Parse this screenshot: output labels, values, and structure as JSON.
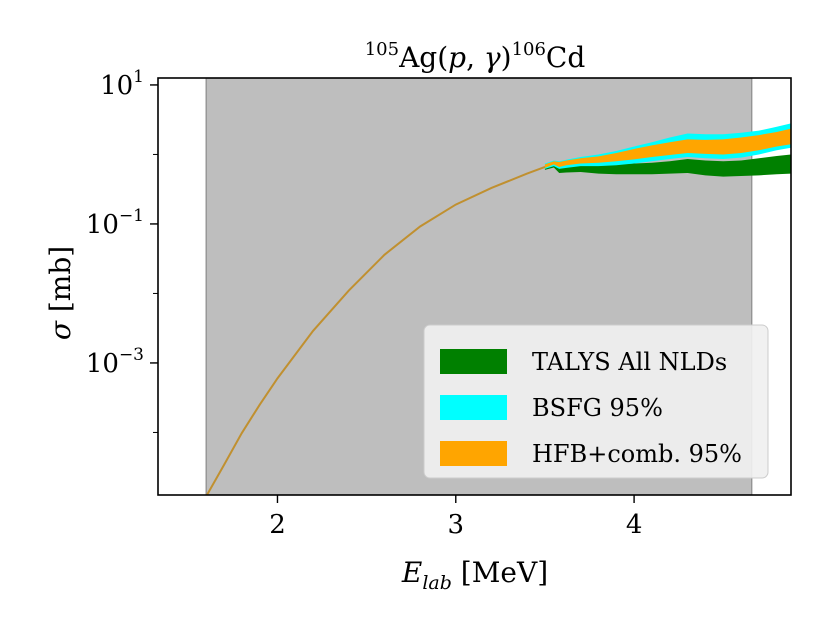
{
  "chart_data": {
    "type": "area",
    "title": {
      "pre_sup": "105",
      "pre_base": "Ag(",
      "p": "p",
      "comma": ", ",
      "gamma": "γ",
      "close": ")",
      "post_sup": "106",
      "post_base": "Cd"
    },
    "xlabel": {
      "var": "E",
      "sub": "lab",
      "unit": " [MeV]"
    },
    "ylabel": {
      "var": "σ",
      "unit": " [mb]"
    },
    "x_range": [
      1.33,
      4.88
    ],
    "y_range_log10": [
      -4.9,
      1.1
    ],
    "y_scale": "log",
    "x_ticks": [
      {
        "value": 2,
        "label": "2"
      },
      {
        "value": 3,
        "label": "3"
      },
      {
        "value": 4,
        "label": "4"
      }
    ],
    "y_ticks": [
      {
        "exp": 1,
        "base": "10",
        "sup": "1"
      },
      {
        "exp": -1,
        "base": "10",
        "sup": "−1"
      },
      {
        "exp": -3,
        "base": "10",
        "sup": "−3"
      }
    ],
    "shaded_region": {
      "x_start": 1.6,
      "x_end": 4.66,
      "color": "#bebebe"
    },
    "legend": {
      "position": "lower-right"
    },
    "series": [
      {
        "name": "TALYS All NLDs",
        "color": "#008000",
        "x": [
          3.5,
          3.55,
          3.58,
          3.62,
          3.7,
          3.8,
          3.9,
          4.0,
          4.1,
          4.2,
          4.3,
          4.4,
          4.5,
          4.6,
          4.7,
          4.8,
          4.88
        ],
        "lower": [
          0.6,
          0.65,
          0.54,
          0.55,
          0.56,
          0.53,
          0.52,
          0.52,
          0.52,
          0.53,
          0.54,
          0.5,
          0.48,
          0.49,
          0.5,
          0.52,
          0.53
        ],
        "upper": [
          0.7,
          0.78,
          0.72,
          0.72,
          0.76,
          0.72,
          0.72,
          0.74,
          0.76,
          0.8,
          0.86,
          0.82,
          0.8,
          0.82,
          0.88,
          0.95,
          1.0
        ]
      },
      {
        "name": "BSFG 95%",
        "color": "#00ffff",
        "x": [
          3.5,
          3.55,
          3.58,
          3.62,
          3.7,
          3.8,
          3.9,
          4.0,
          4.1,
          4.2,
          4.3,
          4.4,
          4.5,
          4.6,
          4.7,
          4.8,
          4.88
        ],
        "lower": [
          0.62,
          0.68,
          0.62,
          0.64,
          0.68,
          0.68,
          0.7,
          0.74,
          0.8,
          0.86,
          0.92,
          0.88,
          0.86,
          0.9,
          1.0,
          1.15,
          1.25
        ],
        "upper": [
          0.74,
          0.82,
          0.8,
          0.84,
          0.92,
          1.0,
          1.12,
          1.3,
          1.5,
          1.75,
          2.0,
          1.95,
          1.95,
          2.05,
          2.2,
          2.5,
          2.8
        ]
      },
      {
        "name": "HFB+comb. 95%",
        "color": "#ffa500",
        "x": [
          3.5,
          3.55,
          3.58,
          3.62,
          3.7,
          3.8,
          3.9,
          4.0,
          4.1,
          4.2,
          4.3,
          4.4,
          4.5,
          4.6,
          4.7,
          4.8,
          4.88
        ],
        "lower": [
          0.64,
          0.72,
          0.66,
          0.7,
          0.74,
          0.76,
          0.8,
          0.85,
          0.92,
          0.98,
          1.05,
          1.02,
          1.0,
          1.05,
          1.15,
          1.3,
          1.4
        ],
        "upper": [
          0.72,
          0.8,
          0.78,
          0.82,
          0.88,
          0.94,
          1.05,
          1.2,
          1.35,
          1.5,
          1.65,
          1.62,
          1.65,
          1.75,
          1.9,
          2.1,
          2.35
        ]
      }
    ],
    "low_energy_curve": {
      "color": "#c09030",
      "x": [
        1.6,
        1.7,
        1.8,
        1.9,
        2.0,
        2.2,
        2.4,
        2.6,
        2.8,
        3.0,
        3.2,
        3.4,
        3.5
      ],
      "y": [
        1.2e-05,
        3.4e-05,
        9.8e-05,
        0.00025,
        0.0006,
        0.0029,
        0.011,
        0.036,
        0.092,
        0.19,
        0.33,
        0.53,
        0.66
      ]
    }
  }
}
